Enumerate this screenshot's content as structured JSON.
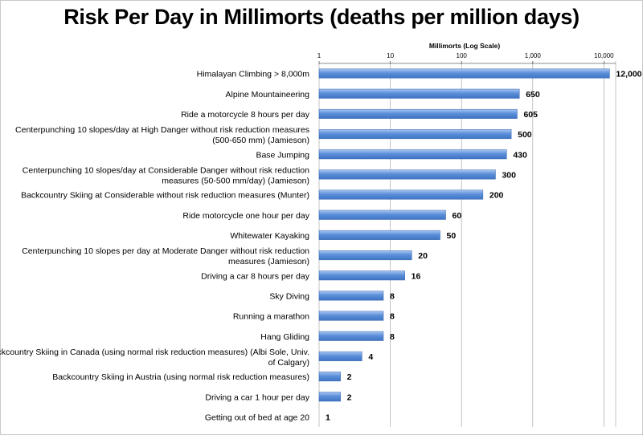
{
  "chart_data": {
    "type": "bar",
    "orientation": "horizontal",
    "title": "Risk Per Day in Millimorts (deaths per million days)",
    "xlabel": "Millimorts (Log Scale)",
    "xscale": "log",
    "xlim": [
      1,
      15000
    ],
    "xticks": [
      "1",
      "10",
      "100",
      "1,000",
      "10,000"
    ],
    "axis_position": "top",
    "grid": true,
    "bar_color": "#5b8fd9",
    "categories": [
      [
        "Himalayan Climbing > 8,000m"
      ],
      [
        "Alpine Mountaineering"
      ],
      [
        "Ride a motorcycle 8 hours per day"
      ],
      [
        "Centerpunching 10 slopes/day at High Danger without risk reduction measures",
        "(500-650 mm) (Jamieson)"
      ],
      [
        "Base Jumping"
      ],
      [
        "Centerpunching 10 slopes/day at Considerable Danger without risk reduction",
        "measures (50-500 mm/day) (Jamieson)"
      ],
      [
        "Backcountry Skiing at Considerable without risk reduction measures (Munter)"
      ],
      [
        "Ride motorcycle one hour per day"
      ],
      [
        "Whitewater Kayaking"
      ],
      [
        "Centerpunching 10 slopes per day at Moderate Danger without risk reduction",
        "measures (Jamieson)"
      ],
      [
        "Driving a car 8 hours per day"
      ],
      [
        "Sky Diving"
      ],
      [
        "Running a marathon"
      ],
      [
        "Hang Gliding"
      ],
      [
        "Backcountry Skiing in Canada (using normal risk reduction measures) (Albi Sole, Univ.",
        "of Calgary)"
      ],
      [
        "Backcountry Skiing in Austria (using normal risk reduction measures)"
      ],
      [
        "Driving a car 1 hour per day"
      ],
      [
        "Getting out of bed at age 20"
      ]
    ],
    "values": [
      12000,
      650,
      605,
      500,
      430,
      300,
      200,
      60,
      50,
      20,
      16,
      8,
      8,
      8,
      4,
      2,
      2,
      1
    ],
    "value_labels": [
      "12,000",
      "650",
      "605",
      "500",
      "430",
      "300",
      "200",
      "60",
      "50",
      "20",
      "16",
      "8",
      "8",
      "8",
      "4",
      "2",
      "2",
      "1"
    ]
  }
}
